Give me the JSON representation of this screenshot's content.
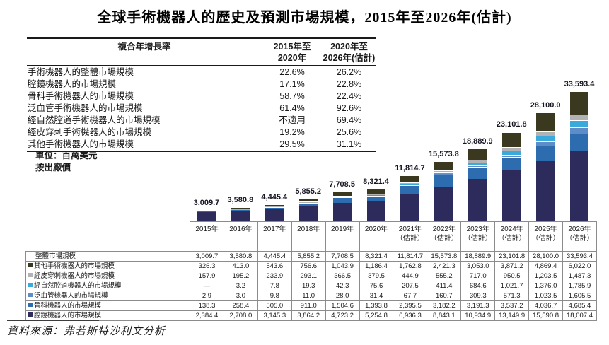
{
  "title": "全球手術機器人的歷史及預測市場規模，2015年至2026年(估計)",
  "cagr_table": {
    "col_headers": [
      "複合年增長率",
      "2015年至\n2020年",
      "2020年至\n2026年(估計)"
    ],
    "rows": [
      [
        "手術機器人的整體市場規模",
        "22.6%",
        "26.2%"
      ],
      [
        "腔鏡機器人的市場規模",
        "17.1%",
        "22.8%"
      ],
      [
        "骨科手術機器人的市場規模",
        "58.7%",
        "22.4%"
      ],
      [
        "泛血管手術機器人的市場規模",
        "61.4%",
        "92.6%"
      ],
      [
        "經自然腔道手術機器人的市場規模",
        "不適用",
        "69.4%"
      ],
      [
        "經皮穿刺手術機器人的市場規模",
        "19.2%",
        "25.6%"
      ],
      [
        "其他手術機器人的市場規模",
        "29.5%",
        "31.1%"
      ]
    ]
  },
  "unit_note": [
    "單位：百萬美元",
    "按出廠價"
  ],
  "chart_data": {
    "type": "bar",
    "stacked": true,
    "title": "全球手術機器人的歷史及預測市場規模，2015年至2026年(估計)",
    "ylabel": "百萬美元(按出廠價)",
    "ylim": [
      0,
      33593.4
    ],
    "legend_position": "table-left",
    "grid": false,
    "categories": [
      "2015年",
      "2016年",
      "2017年",
      "2018年",
      "2019年",
      "2020年",
      "2021年",
      "2022年",
      "2023年",
      "2024年",
      "2025年",
      "2026年"
    ],
    "estimate_note": "（估計）",
    "estimate_from_index": 6,
    "totals_row_label": "整體市場規模",
    "totals": [
      3009.7,
      3580.8,
      4445.4,
      5855.2,
      7708.5,
      8321.4,
      11814.7,
      15573.8,
      18889.9,
      23101.8,
      28100.0,
      33593.4
    ],
    "series": [
      {
        "name": "其他手術機器人的市場規模",
        "color": "#3a391f",
        "values": [
          326.3,
          413.0,
          543.6,
          756.6,
          1043.9,
          1186.4,
          1762.8,
          2421.3,
          3053.0,
          3871.2,
          4869.4,
          6022.0
        ]
      },
      {
        "name": "經皮穿刺機器人的市場規模",
        "color": "#b2b2b4",
        "values": [
          157.9,
          195.2,
          233.9,
          293.1,
          366.5,
          379.5,
          444.9,
          555.2,
          717.0,
          950.5,
          1203.5,
          1487.3
        ]
      },
      {
        "name": "經自然腔道機器人的市場規模",
        "color": "#3aaadc",
        "values": [
          null,
          3.2,
          7.8,
          19.3,
          42.3,
          75.6,
          207.5,
          411.4,
          684.6,
          1021.7,
          1376.0,
          1785.9
        ]
      },
      {
        "name": "泛血管機器人的市場規模",
        "color": "#5d8cc6",
        "values": [
          2.9,
          3.0,
          9.8,
          11.0,
          28.0,
          31.4,
          67.7,
          160.7,
          309.3,
          571.3,
          1023.5,
          1605.5
        ]
      },
      {
        "name": "骨科機器人的市場規模",
        "color": "#2d6daf",
        "values": [
          138.3,
          258.4,
          505.0,
          911.0,
          1504.6,
          1393.8,
          2395.5,
          3182.2,
          3191.3,
          3537.2,
          4036.7,
          4685.4
        ]
      },
      {
        "name": "腔鏡機器人的市場規模",
        "color": "#2c2b5c",
        "values": [
          2384.4,
          2708.0,
          3145.3,
          3864.2,
          4723.2,
          5254.8,
          6936.3,
          8843.1,
          10934.9,
          13149.9,
          15590.8,
          18007.4
        ]
      }
    ],
    "stack_order_bottom_to_top": [
      5,
      4,
      3,
      2,
      1,
      0
    ]
  },
  "source": "資料來源：弗若斯特沙利文分析"
}
